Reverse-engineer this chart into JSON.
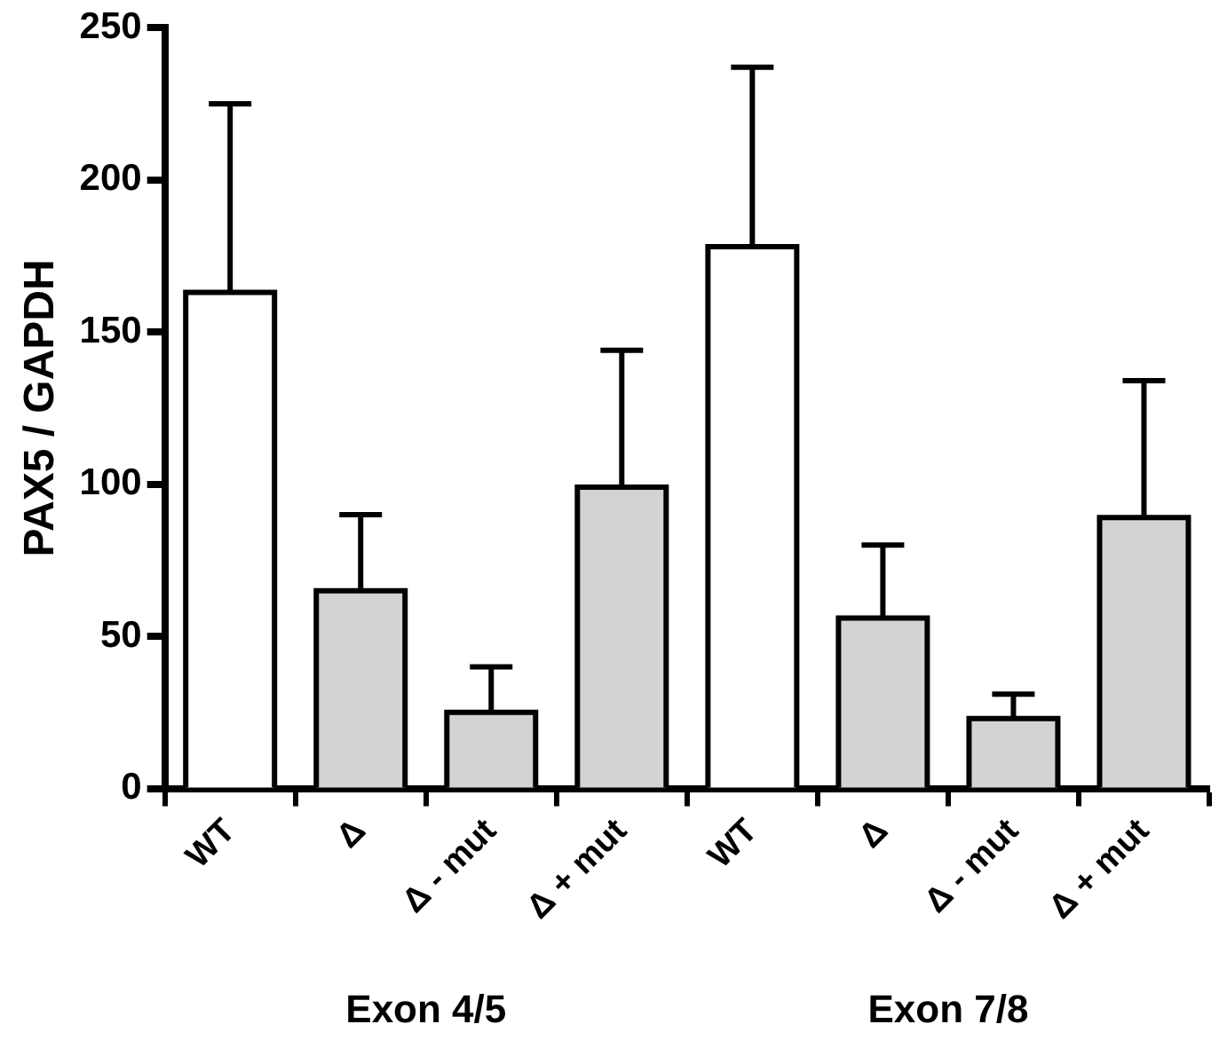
{
  "chart_data": {
    "type": "bar",
    "ylabel": "PAX5 / GAPDH",
    "categories": [
      "WT",
      "Δ",
      "Δ - mut",
      "Δ + mut",
      "WT",
      "Δ",
      "Δ - mut",
      "Δ + mut"
    ],
    "values": [
      163,
      65,
      25,
      99,
      178,
      56,
      23,
      89
    ],
    "colors": [
      "#ffffff",
      "#d3d3d3",
      "#d3d3d3",
      "#d3d3d3",
      "#ffffff",
      "#d3d3d3",
      "#d3d3d3",
      "#d3d3d3"
    ],
    "errors": [
      [
        163,
        225
      ],
      [
        65,
        90
      ],
      [
        25,
        40
      ],
      [
        99,
        144
      ],
      [
        178,
        237
      ],
      [
        56,
        80
      ],
      [
        23,
        31
      ],
      [
        89,
        134
      ]
    ],
    "ylim": [
      0,
      250
    ],
    "yticks": [
      0,
      50,
      100,
      150,
      200,
      250
    ],
    "annotations": [
      "Exon 4/5",
      "Exon 7/8"
    ]
  }
}
